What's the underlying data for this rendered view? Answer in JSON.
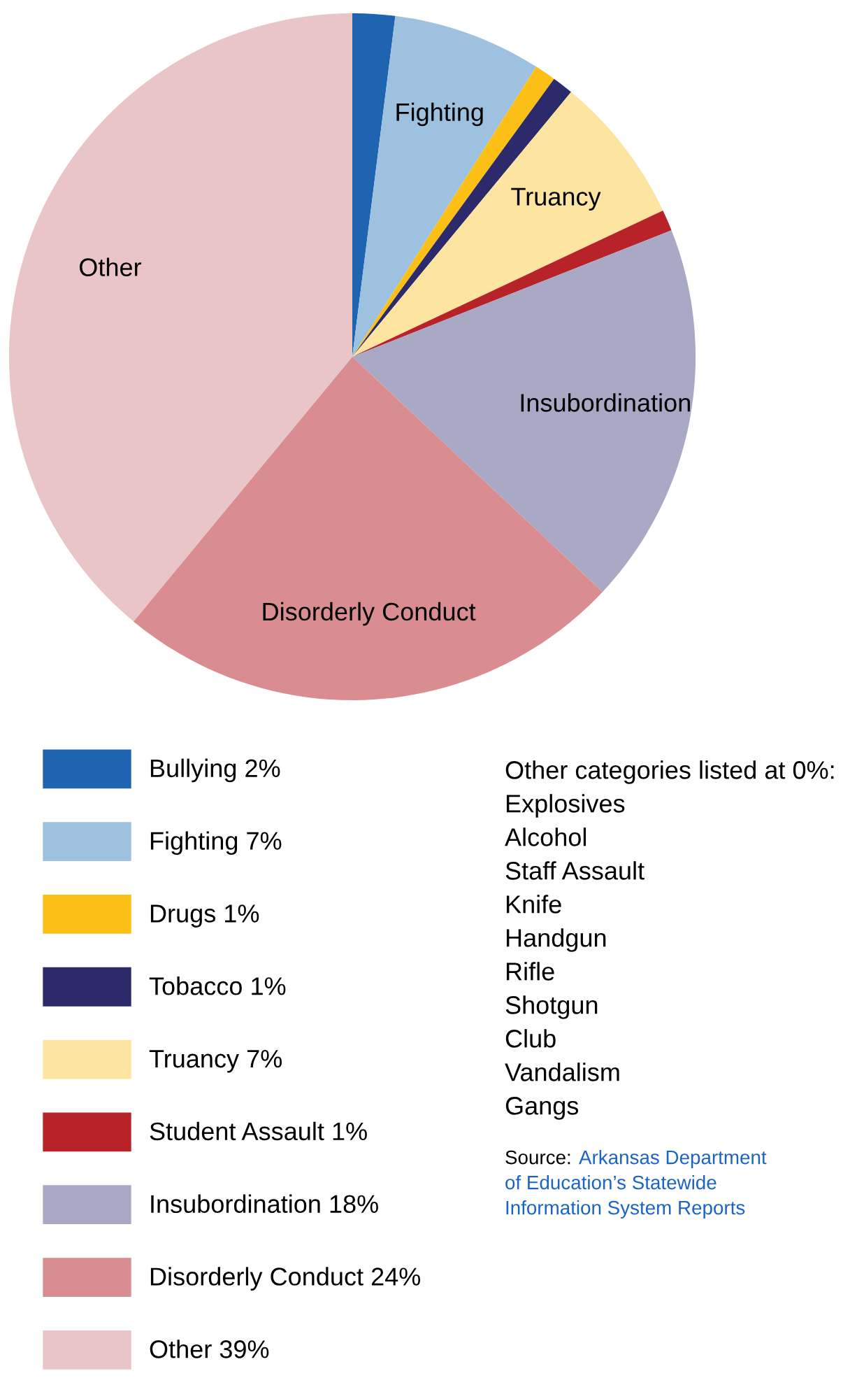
{
  "chart_data": {
    "type": "pie",
    "categories": [
      "Bullying",
      "Fighting",
      "Drugs",
      "Tobacco",
      "Truancy",
      "Student Assault",
      "Insubordination",
      "Disorderly Conduct",
      "Other"
    ],
    "values": [
      2,
      7,
      1,
      1,
      7,
      1,
      18,
      24,
      39
    ],
    "value_labels": [
      "2%",
      "7%",
      "1%",
      "1%",
      "7%",
      "1%",
      "18%",
      "24%",
      "39%"
    ],
    "colors": [
      "#1f64b0",
      "#9dc1de",
      "#fbbf16",
      "#2c2a6b",
      "#fde4a0",
      "#b8232a",
      "#a9a9c6",
      "#d98d91",
      "#e9c5c8"
    ],
    "legend": "bottom left",
    "annotations": [
      {
        "text": "Fighting",
        "x": "Fighting"
      },
      {
        "text": "Truancy",
        "x": "Truancy"
      },
      {
        "text": "Insubordination",
        "x": "Insubordination"
      },
      {
        "text": "Disorderly Conduct",
        "x": "Disorderly Conduct"
      },
      {
        "text": "Other",
        "x": "Other"
      },
      "Other categories listed at 0%:",
      "Explosives",
      "Alcohol",
      "Staff Assault",
      "Knife",
      "Handgun",
      "Rifle",
      "Shotgun",
      "Club",
      "Vandalism",
      "Gangs",
      "Source:",
      "Arkansas Department\nof Education’s Statewide\nInformation System Reports"
    ]
  }
}
